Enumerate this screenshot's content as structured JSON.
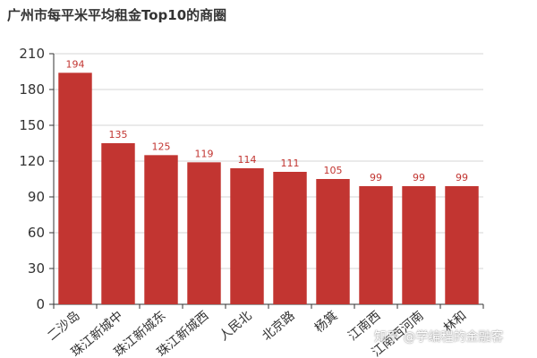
{
  "chart_data": {
    "type": "bar",
    "title": "广州市每平米平均租金Top10的商圈",
    "categories": [
      "二沙岛",
      "珠江新城中",
      "珠江新城东",
      "珠江新城西",
      "人民北",
      "北京路",
      "杨箕",
      "江南西",
      "江南西河南",
      "林和"
    ],
    "values": [
      194,
      135,
      125,
      119,
      114,
      111,
      105,
      99,
      99,
      99
    ],
    "ylim": [
      0,
      210
    ],
    "yticks": [
      0,
      30,
      60,
      90,
      120,
      150,
      180,
      210
    ],
    "xlabel": "",
    "ylabel": "",
    "grid": true,
    "bar_color": "#c23531",
    "label_color": "#c23531"
  },
  "watermark": "知乎 @学编程的金融客"
}
